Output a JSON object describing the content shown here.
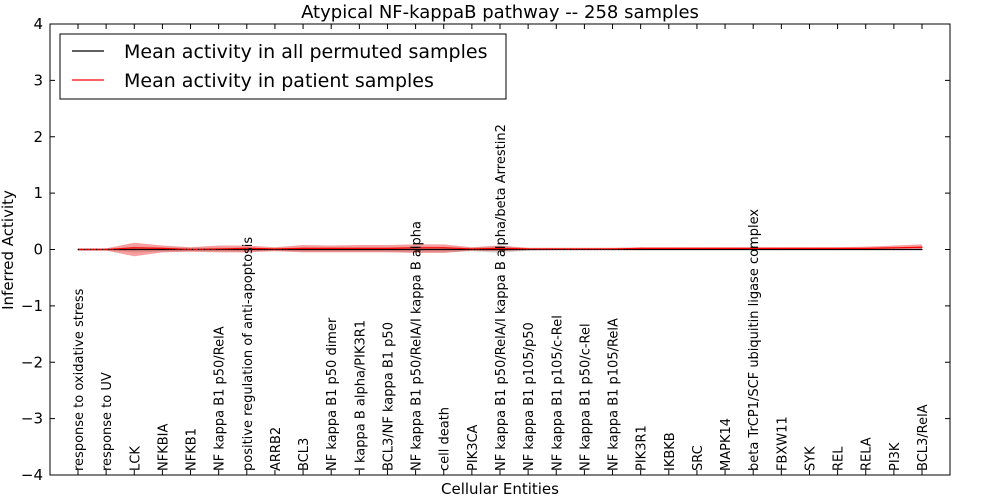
{
  "chart_data": {
    "type": "line",
    "title": "Atypical NF-kappaB pathway -- 258 samples",
    "xlabel": "Cellular Entities",
    "ylabel": "Inferred Activity",
    "ylim": [
      -4,
      4
    ],
    "yticks": [
      -4,
      -3,
      -2,
      -1,
      0,
      1,
      2,
      3,
      4
    ],
    "ytick_labels": [
      "−4",
      "−3",
      "−2",
      "−1",
      "0",
      "1",
      "2",
      "3",
      "4"
    ],
    "legend_position": "top-left",
    "categories": [
      "response to oxidative stress",
      "response to UV",
      "LCK",
      "NFKBIA",
      "NFKB1",
      "NF kappa B1 p50/RelA",
      "positive regulation of anti-apoptosis",
      "ARRB2",
      "BCL3",
      "NF kappa B1 p50 dimer",
      "I kappa B alpha/PIK3R1",
      "BCL3/NF kappa B1 p50",
      "NF kappa B1 p50/RelA/I kappa B alpha",
      "cell death",
      "PIK3CA",
      "NF kappa B1 p50/RelA/I kappa B alpha/beta Arrestin2",
      "NF kappa B1 p105/p50",
      "NF kappa B1 p105/c-Rel",
      "NF kappa B1 p50/c-Rel",
      "NF kappa B1 p105/RelA",
      "PIK3R1",
      "IKBKB",
      "SRC",
      "MAPK14",
      "beta TrCP1/SCF ubiquitin ligase complex",
      "FBXW11",
      "SYK",
      "REL",
      "RELA",
      "PI3K",
      "BCL3/RelA"
    ],
    "series": [
      {
        "name": "Mean activity in all permuted samples",
        "color": "#000000",
        "values": [
          0,
          0,
          0,
          0,
          0,
          0,
          0,
          0,
          0,
          0,
          0,
          0,
          0,
          0,
          0,
          0,
          0,
          0,
          0,
          0,
          0,
          0,
          0,
          0,
          0,
          0,
          0,
          0,
          0,
          0,
          0
        ],
        "band_lower": [
          -0.01,
          -0.01,
          -0.05,
          -0.04,
          -0.03,
          -0.03,
          -0.04,
          -0.02,
          -0.04,
          -0.04,
          -0.04,
          -0.04,
          -0.05,
          -0.05,
          -0.03,
          -0.06,
          -0.02,
          -0.01,
          -0.01,
          -0.01,
          -0.01,
          -0.01,
          -0.01,
          -0.01,
          -0.01,
          -0.01,
          -0.01,
          -0.01,
          -0.01,
          -0.01,
          -0.01
        ],
        "band_upper": [
          0.01,
          0.01,
          0.05,
          0.04,
          0.03,
          0.03,
          0.04,
          0.02,
          0.04,
          0.04,
          0.04,
          0.04,
          0.05,
          0.05,
          0.03,
          0.06,
          0.02,
          0.01,
          0.01,
          0.01,
          0.01,
          0.01,
          0.01,
          0.01,
          0.01,
          0.01,
          0.01,
          0.01,
          0.01,
          0.01,
          0.01
        ]
      },
      {
        "name": "Mean activity in patient samples",
        "color": "#ff0000",
        "values": [
          0.0,
          0.0,
          0.03,
          0.02,
          0.0,
          0.01,
          0.02,
          0.01,
          0.02,
          0.02,
          0.02,
          0.02,
          0.03,
          0.03,
          0.01,
          0.02,
          0.01,
          0.01,
          0.01,
          0.01,
          0.02,
          0.02,
          0.02,
          0.02,
          0.02,
          0.02,
          0.02,
          0.02,
          0.02,
          0.03,
          0.04
        ],
        "band_lower": [
          -0.02,
          -0.02,
          -0.12,
          -0.05,
          -0.04,
          -0.05,
          -0.05,
          -0.03,
          -0.05,
          -0.05,
          -0.05,
          -0.05,
          -0.06,
          -0.06,
          -0.02,
          -0.03,
          -0.01,
          -0.01,
          -0.01,
          -0.01,
          -0.01,
          -0.01,
          -0.01,
          -0.01,
          -0.01,
          -0.01,
          -0.01,
          -0.01,
          -0.01,
          -0.01,
          -0.01
        ],
        "band_upper": [
          0.02,
          0.02,
          0.12,
          0.07,
          0.04,
          0.07,
          0.07,
          0.04,
          0.08,
          0.07,
          0.08,
          0.08,
          0.09,
          0.09,
          0.04,
          0.07,
          0.03,
          0.03,
          0.03,
          0.03,
          0.04,
          0.04,
          0.04,
          0.04,
          0.04,
          0.04,
          0.04,
          0.04,
          0.05,
          0.07,
          0.09
        ]
      }
    ]
  }
}
